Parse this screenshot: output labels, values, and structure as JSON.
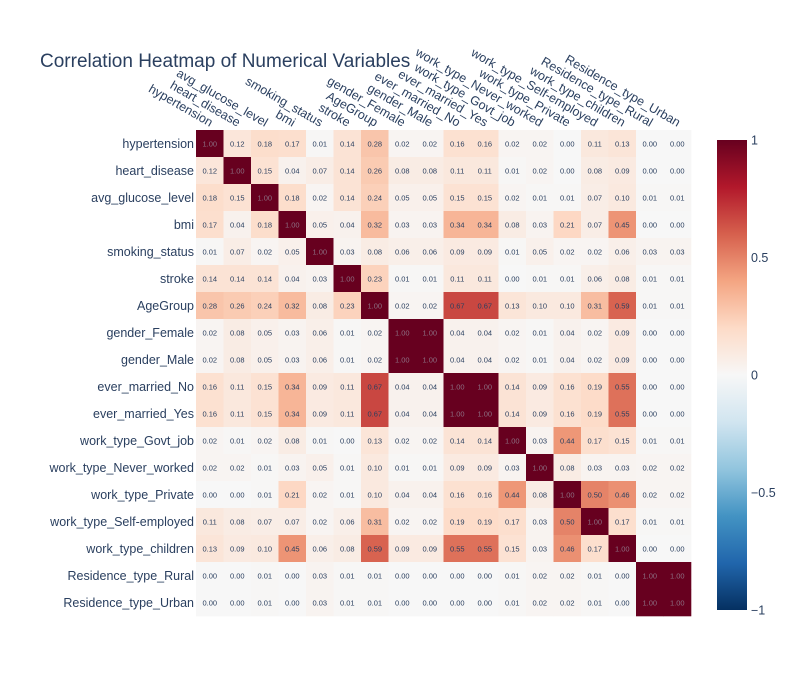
{
  "chart_data": {
    "type": "heatmap",
    "title": "Correlation Heatmap of Numerical Variables",
    "xlabel": "",
    "ylabel": "",
    "variables": [
      "hypertension",
      "heart_disease",
      "avg_glucose_level",
      "bmi",
      "smoking_status",
      "stroke",
      "AgeGroup",
      "gender_Female",
      "gender_Male",
      "ever_married_No",
      "ever_married_Yes",
      "work_type_Govt_job",
      "work_type_Never_worked",
      "work_type_Private",
      "work_type_Self-employed",
      "work_type_children",
      "Residence_type_Rural",
      "Residence_type_Urban"
    ],
    "values": [
      [
        1.0,
        0.12,
        0.18,
        0.17,
        0.01,
        0.14,
        0.28,
        0.02,
        0.02,
        0.16,
        0.16,
        0.02,
        0.02,
        0.0,
        0.11,
        0.13,
        0.0,
        0.0
      ],
      [
        0.12,
        1.0,
        0.15,
        0.04,
        0.07,
        0.14,
        0.26,
        0.08,
        0.08,
        0.11,
        0.11,
        0.01,
        0.02,
        0.0,
        0.08,
        0.09,
        0.0,
        0.0
      ],
      [
        0.18,
        0.15,
        1.0,
        0.18,
        0.02,
        0.14,
        0.24,
        0.05,
        0.05,
        0.15,
        0.15,
        0.02,
        0.01,
        0.01,
        0.07,
        0.1,
        0.01,
        0.01
      ],
      [
        0.17,
        0.04,
        0.18,
        1.0,
        0.05,
        0.04,
        0.32,
        0.03,
        0.03,
        0.34,
        0.34,
        0.08,
        0.03,
        0.21,
        0.07,
        0.45,
        0.0,
        0.0
      ],
      [
        0.01,
        0.07,
        0.02,
        0.05,
        1.0,
        0.03,
        0.08,
        0.06,
        0.06,
        0.09,
        0.09,
        0.01,
        0.05,
        0.02,
        0.02,
        0.06,
        0.03,
        0.03
      ],
      [
        0.14,
        0.14,
        0.14,
        0.04,
        0.03,
        1.0,
        0.23,
        0.01,
        0.01,
        0.11,
        0.11,
        0.0,
        0.01,
        0.01,
        0.06,
        0.08,
        0.01,
        0.01
      ],
      [
        0.28,
        0.26,
        0.24,
        0.32,
        0.08,
        0.23,
        1.0,
        0.02,
        0.02,
        0.67,
        0.67,
        0.13,
        0.1,
        0.1,
        0.31,
        0.59,
        0.01,
        0.01
      ],
      [
        0.02,
        0.08,
        0.05,
        0.03,
        0.06,
        0.01,
        0.02,
        1.0,
        1.0,
        0.04,
        0.04,
        0.02,
        0.01,
        0.04,
        0.02,
        0.09,
        0.0,
        0.0
      ],
      [
        0.02,
        0.08,
        0.05,
        0.03,
        0.06,
        0.01,
        0.02,
        1.0,
        1.0,
        0.04,
        0.04,
        0.02,
        0.01,
        0.04,
        0.02,
        0.09,
        0.0,
        0.0
      ],
      [
        0.16,
        0.11,
        0.15,
        0.34,
        0.09,
        0.11,
        0.67,
        0.04,
        0.04,
        1.0,
        1.0,
        0.14,
        0.09,
        0.16,
        0.19,
        0.55,
        0.0,
        0.0
      ],
      [
        0.16,
        0.11,
        0.15,
        0.34,
        0.09,
        0.11,
        0.67,
        0.04,
        0.04,
        1.0,
        1.0,
        0.14,
        0.09,
        0.16,
        0.19,
        0.55,
        0.0,
        0.0
      ],
      [
        0.02,
        0.01,
        0.02,
        0.08,
        0.01,
        0.0,
        0.13,
        0.02,
        0.02,
        0.14,
        0.14,
        1.0,
        0.03,
        0.44,
        0.17,
        0.15,
        0.01,
        0.01
      ],
      [
        0.02,
        0.02,
        0.01,
        0.03,
        0.05,
        0.01,
        0.1,
        0.01,
        0.01,
        0.09,
        0.09,
        0.03,
        1.0,
        0.08,
        0.03,
        0.03,
        0.02,
        0.02
      ],
      [
        0.0,
        0.0,
        0.01,
        0.21,
        0.02,
        0.01,
        0.1,
        0.04,
        0.04,
        0.16,
        0.16,
        0.44,
        0.08,
        1.0,
        0.5,
        0.46,
        0.02,
        0.02
      ],
      [
        0.11,
        0.08,
        0.07,
        0.07,
        0.02,
        0.06,
        0.31,
        0.02,
        0.02,
        0.19,
        0.19,
        0.17,
        0.03,
        0.5,
        1.0,
        0.17,
        0.01,
        0.01
      ],
      [
        0.13,
        0.09,
        0.1,
        0.45,
        0.06,
        0.08,
        0.59,
        0.09,
        0.09,
        0.55,
        0.55,
        0.15,
        0.03,
        0.46,
        0.17,
        1.0,
        0.0,
        0.0
      ],
      [
        0.0,
        0.0,
        0.01,
        0.0,
        0.03,
        0.01,
        0.01,
        0.0,
        0.0,
        0.0,
        0.0,
        0.01,
        0.02,
        0.02,
        0.01,
        0.0,
        1.0,
        1.0
      ],
      [
        0.0,
        0.0,
        0.01,
        0.0,
        0.03,
        0.01,
        0.01,
        0.0,
        0.0,
        0.0,
        0.0,
        0.01,
        0.02,
        0.02,
        0.01,
        0.0,
        1.0,
        1.0
      ]
    ],
    "value_format": "0.00",
    "zrange": [
      -1,
      1
    ],
    "colorscale": "RdBu (reversed)",
    "colorbar_ticks": [
      1,
      0.5,
      0,
      -0.5,
      -1
    ],
    "colorbar_tick_labels": [
      "1",
      "0.5",
      "0",
      "−0.5",
      "−1"
    ],
    "x_labels_position": "top",
    "grid": false
  }
}
